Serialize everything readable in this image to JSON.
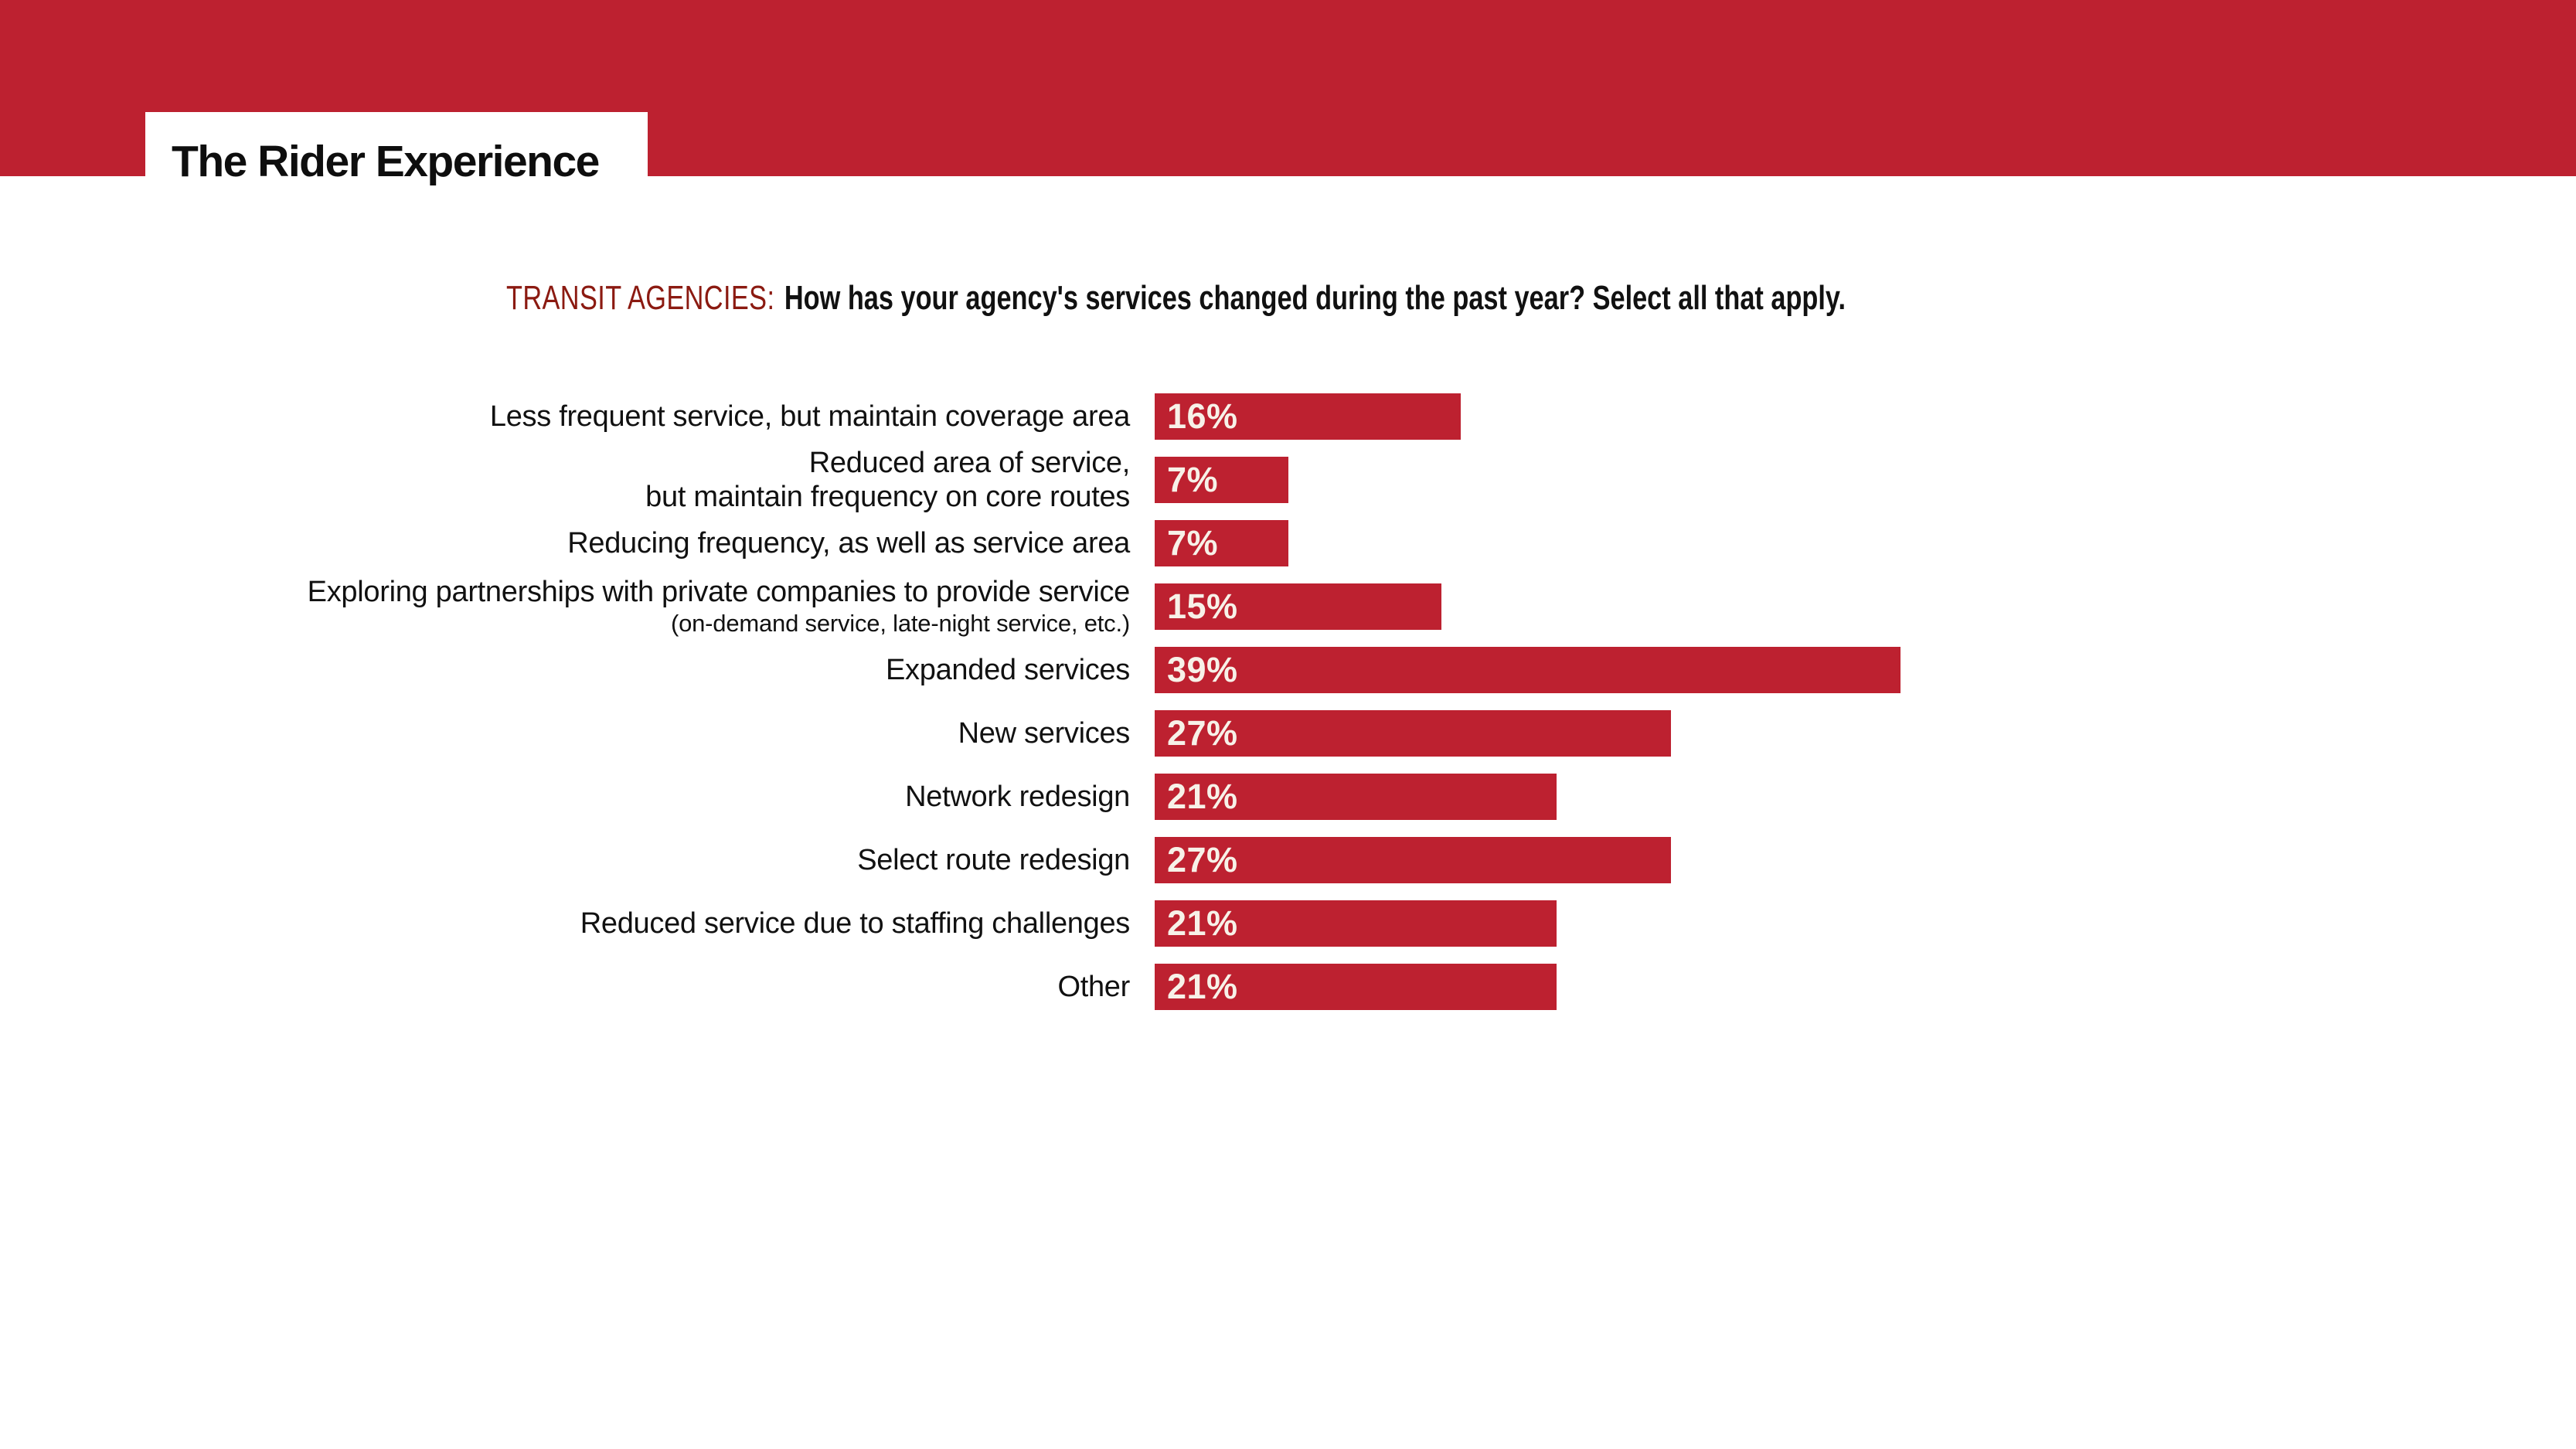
{
  "theme": {
    "red": "#BD2130",
    "dark_red": "#8B1A11",
    "text": "#111111",
    "value_label": "#F7F1E8",
    "background": "#FFFFFF"
  },
  "header": {
    "title": "The Rider Experience"
  },
  "question": {
    "prefix": "TRANSIT AGENCIES:",
    "text": "How has your agency's services changed during the past year? Select all that apply."
  },
  "chart_data": {
    "type": "bar",
    "orientation": "horizontal",
    "value_unit": "%",
    "title": "TRANSIT AGENCIES: How has your agency's services changed during the past year? Select all that apply.",
    "xlim": [
      0,
      39
    ],
    "grid": false,
    "legend": null,
    "value_label_position": "inside-bar-left",
    "bar_color": "#BD2130",
    "categories": [
      "Less frequent service, but maintain coverage area",
      "Reduced area of service, but maintain frequency on core routes",
      "Reducing frequency, as well as service area",
      "Exploring partnerships with private companies to provide service (on-demand service, late-night service, etc.)",
      "Expanded services",
      "New services",
      "Network redesign",
      "Select route redesign",
      "Reduced service due to staffing challenges",
      "Other"
    ],
    "values": [
      16,
      7,
      7,
      15,
      39,
      27,
      21,
      27,
      21,
      21
    ],
    "rows": [
      {
        "label_lines": [
          "Less frequent service, but maintain coverage area"
        ],
        "value": 16,
        "value_label": "16%"
      },
      {
        "label_lines": [
          "Reduced area of service,",
          "but maintain frequency on core routes"
        ],
        "value": 7,
        "value_label": "7%"
      },
      {
        "label_lines": [
          "Reducing frequency, as well as service area"
        ],
        "value": 7,
        "value_label": "7%"
      },
      {
        "label_lines": [
          "Exploring partnerships with private companies to provide service"
        ],
        "note": "(on-demand service, late-night service, etc.)",
        "value": 15,
        "value_label": "15%"
      },
      {
        "label_lines": [
          "Expanded services"
        ],
        "value": 39,
        "value_label": "39%"
      },
      {
        "label_lines": [
          "New services"
        ],
        "value": 27,
        "value_label": "27%"
      },
      {
        "label_lines": [
          "Network redesign"
        ],
        "value": 21,
        "value_label": "21%"
      },
      {
        "label_lines": [
          "Select route redesign"
        ],
        "value": 27,
        "value_label": "27%"
      },
      {
        "label_lines": [
          "Reduced service due to staffing challenges"
        ],
        "value": 21,
        "value_label": "21%"
      },
      {
        "label_lines": [
          "Other"
        ],
        "value": 21,
        "value_label": "21%"
      }
    ]
  }
}
